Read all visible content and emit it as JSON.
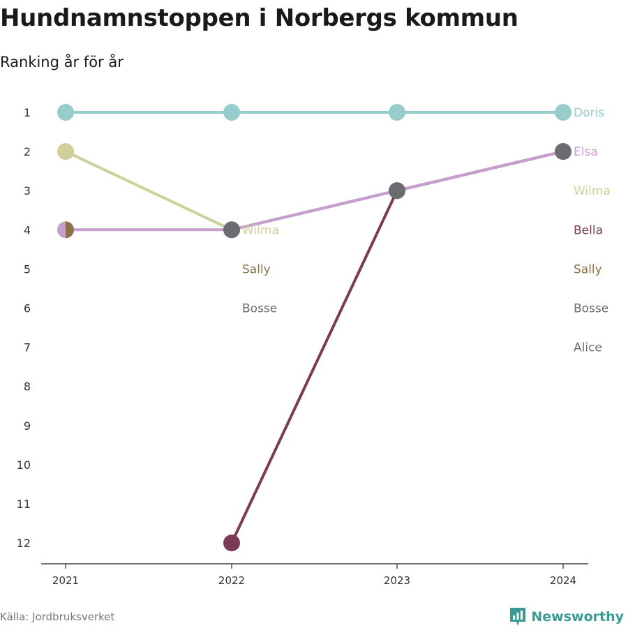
{
  "header": {
    "title": "Hundnamnstoppen i Norbergs kommun",
    "subtitle": "Ranking år för år"
  },
  "footer": {
    "source": "Källa: Jordbruksverket",
    "brand": "Newsworthy",
    "brand_icon": "newsworthy-logo-icon",
    "brand_color": "#3a9a94"
  },
  "chart_data": {
    "type": "line",
    "x": [
      "2021",
      "2022",
      "2023",
      "2024"
    ],
    "y_ticks": [
      "1",
      "2",
      "3",
      "4",
      "5",
      "6",
      "7",
      "8",
      "9",
      "10",
      "11",
      "12"
    ],
    "ylim": [
      1,
      12
    ],
    "y_reversed": true,
    "grid": false,
    "series": [
      {
        "name": "Doris",
        "color": "#96cccc",
        "values": [
          1,
          1,
          1,
          1
        ]
      },
      {
        "name": "Wilma",
        "color": "#cfcf9a",
        "values": [
          2,
          4,
          null,
          null
        ]
      },
      {
        "name": "Elsa",
        "color": "#c69fcf",
        "values": [
          4,
          4,
          3,
          2
        ]
      },
      {
        "name": "Sally",
        "color": "#8b7048",
        "values": [
          4,
          null,
          null,
          null
        ]
      },
      {
        "name": "Bella",
        "color": "#7c3b55",
        "values": [
          null,
          12,
          3,
          2
        ]
      },
      {
        "name": "Bosse",
        "color": "#6c6b72",
        "values": [
          null,
          4,
          3,
          2
        ]
      },
      {
        "name": "Alice",
        "color": "#6c6b72",
        "values": [
          null,
          null,
          null,
          null
        ]
      }
    ],
    "labels": [
      {
        "text": "Doris",
        "x": "2024",
        "y": 1,
        "color": "#96cccc"
      },
      {
        "text": "Elsa",
        "x": "2024",
        "y": 2,
        "color": "#c69fcf"
      },
      {
        "text": "Wilma",
        "x": "2024",
        "y": 3,
        "color": "#cfcf9a"
      },
      {
        "text": "Bella",
        "x": "2024",
        "y": 4,
        "color": "#7c3b55"
      },
      {
        "text": "Sally",
        "x": "2024",
        "y": 5,
        "color": "#8b7048"
      },
      {
        "text": "Bosse",
        "x": "2024",
        "y": 6,
        "color": "#6c6b72"
      },
      {
        "text": "Alice",
        "x": "2024",
        "y": 7,
        "color": "#6c6b72"
      },
      {
        "text": "Wilma",
        "x": "2022",
        "y": 4,
        "color": "#cfcf9a"
      },
      {
        "text": "Sally",
        "x": "2022",
        "y": 5,
        "color": "#8b7048"
      },
      {
        "text": "Bosse",
        "x": "2022",
        "y": 6,
        "color": "#6c6b72"
      }
    ]
  }
}
